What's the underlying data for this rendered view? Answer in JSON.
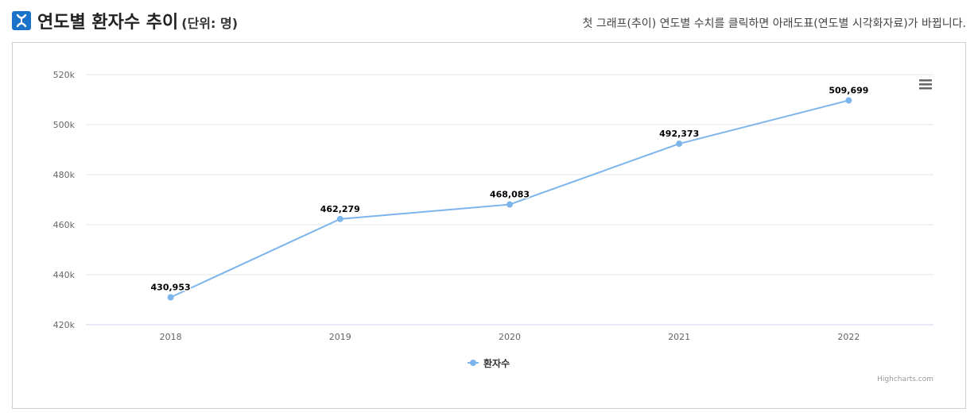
{
  "header": {
    "title": "연도별 환자수 추이",
    "unit": "(단위: 명)",
    "notice": "첫 그래프(추이) 연도별 수치를 클릭하면 아래도표(연도별 시각화자료)가 바뀝니다."
  },
  "chart_data": {
    "type": "line",
    "categories": [
      "2018",
      "2019",
      "2020",
      "2021",
      "2022"
    ],
    "series": [
      {
        "name": "환자수",
        "values": [
          430953,
          462279,
          468083,
          492373,
          509699
        ],
        "color": "#7cb5ec"
      }
    ],
    "data_labels": [
      "430,953",
      "462,279",
      "468,083",
      "492,373",
      "509,699"
    ],
    "ylim": [
      420000,
      520000
    ],
    "yticks": [
      420000,
      440000,
      460000,
      480000,
      500000,
      520000
    ],
    "ytick_labels": [
      "420k",
      "440k",
      "460k",
      "480k",
      "500k",
      "520k"
    ],
    "grid": true,
    "legend": "bottom-center",
    "credits": "Highcharts.com"
  },
  "icons": {
    "logo": "logo-icon",
    "menu": "hamburger-menu-icon"
  },
  "colors": {
    "brand": "#1a73c8",
    "line": "#7cb5ec",
    "grid": "#e6e6e6"
  }
}
